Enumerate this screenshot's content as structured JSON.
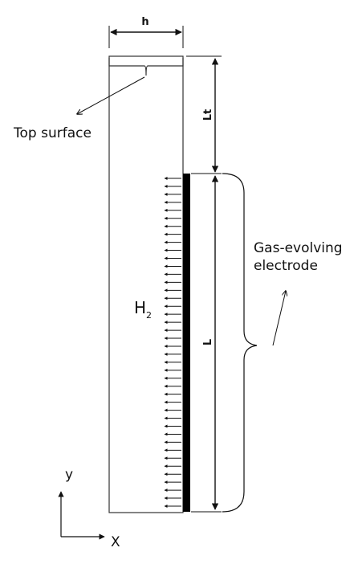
{
  "labels": {
    "width": "h",
    "top_length": "Lt",
    "electrode_length": "L",
    "top_surface": "Top surface",
    "electrode_line1": "Gas-evolving",
    "electrode_line2": "electrode",
    "species": "H",
    "species_sub": "2",
    "axis_y": "y",
    "axis_x": "X"
  },
  "electrode": {
    "arrow_count": 42
  },
  "colors": {
    "line": "#111111",
    "electrode": "#000000"
  }
}
